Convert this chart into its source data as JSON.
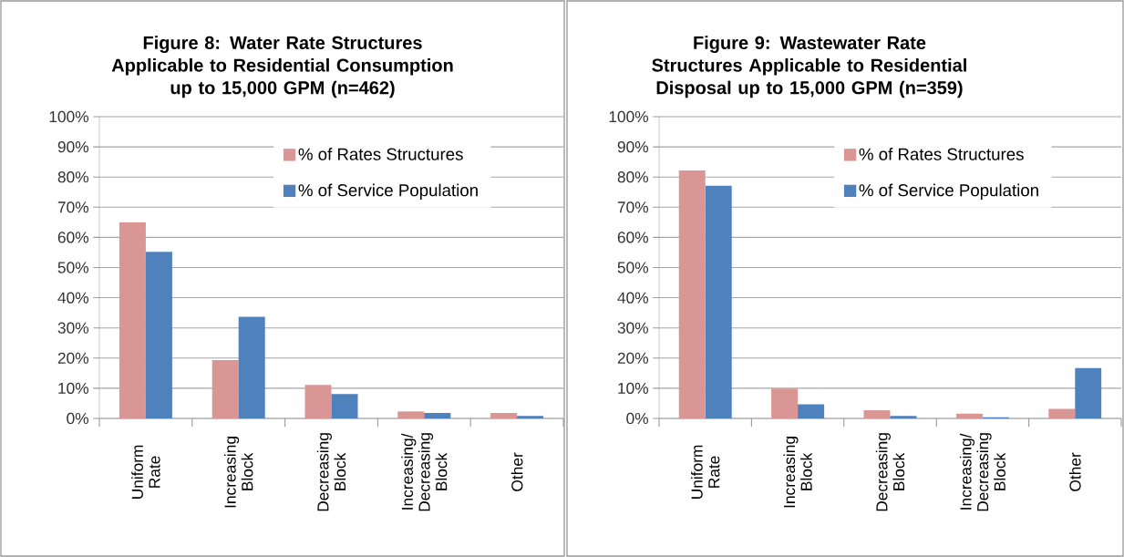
{
  "chart_data": [
    {
      "type": "bar",
      "title": "Figure 8: Water Rate Structures Applicable to Residential Consumption up to 15,000 GPM (n=462)",
      "categories": [
        "Uniform Rate",
        "Increasing Block",
        "Decreasing Block",
        "Increasing/Decreasing Block",
        "Other"
      ],
      "series": [
        {
          "name": "% of Rates Structures",
          "color": "#d99694",
          "values": [
            65,
            19.3,
            11.1,
            2.3,
            1.8
          ]
        },
        {
          "name": "% of Service Population",
          "color": "#4f81bd",
          "values": [
            55.2,
            33.7,
            8.1,
            1.8,
            0.8
          ]
        }
      ],
      "ylim": [
        0,
        100
      ],
      "yticks": [
        {
          "value": 0,
          "label": "0%"
        },
        {
          "value": 10,
          "label": "10%"
        },
        {
          "value": 20,
          "label": "20%"
        },
        {
          "value": 30,
          "label": "30%"
        },
        {
          "value": 40,
          "label": "40%"
        },
        {
          "value": 50,
          "label": "50%"
        },
        {
          "value": 60,
          "label": "60%"
        },
        {
          "value": 70,
          "label": "70%"
        },
        {
          "value": 80,
          "label": "80%"
        },
        {
          "value": 90,
          "label": "90%"
        },
        {
          "value": 100,
          "label": "100%"
        }
      ],
      "grid": "y",
      "legend": "top right"
    },
    {
      "type": "bar",
      "title": "Figure 9: Wastewater Rate Structures Applicable to Residential Disposal up to 15,000 GPM (n=359)",
      "categories": [
        "Uniform Rate",
        "Increasing Block",
        "Decreasing Block",
        "Increasing/Decreasing Block",
        "Other"
      ],
      "series": [
        {
          "name": "% of Rates Structures",
          "color": "#d99694",
          "values": [
            82.2,
            9.9,
            2.7,
            1.6,
            3.2
          ]
        },
        {
          "name": "% of Service Population",
          "color": "#4f81bd",
          "values": [
            77.2,
            4.7,
            0.8,
            0.4,
            16.7
          ]
        }
      ],
      "ylim": [
        0,
        100
      ],
      "yticks": [
        {
          "value": 0,
          "label": "0%"
        },
        {
          "value": 10,
          "label": "10%"
        },
        {
          "value": 20,
          "label": "20%"
        },
        {
          "value": 30,
          "label": "30%"
        },
        {
          "value": 40,
          "label": "40%"
        },
        {
          "value": 50,
          "label": "50%"
        },
        {
          "value": 60,
          "label": "60%"
        },
        {
          "value": 70,
          "label": "70%"
        },
        {
          "value": 80,
          "label": "80%"
        },
        {
          "value": 90,
          "label": "90%"
        },
        {
          "value": 100,
          "label": "100%"
        }
      ],
      "grid": "y",
      "legend": "top right"
    }
  ]
}
